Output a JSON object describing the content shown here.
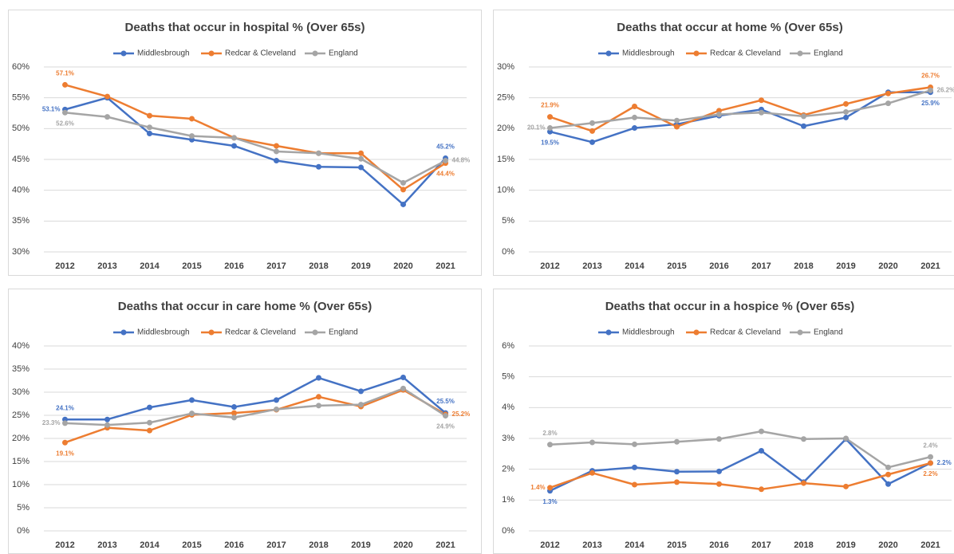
{
  "chart_data": [
    {
      "type": "line",
      "title": "Deaths that occur in hospital % (Over 65s)",
      "categories": [
        "2012",
        "2013",
        "2014",
        "2015",
        "2016",
        "2017",
        "2018",
        "2019",
        "2020",
        "2021"
      ],
      "series": [
        {
          "name": "Middlesbrough",
          "color": "#4472c4",
          "values": [
            53.1,
            55.0,
            49.2,
            48.2,
            47.2,
            44.8,
            43.8,
            43.7,
            37.7,
            45.2
          ],
          "value_labels": [
            "53.1%",
            null,
            null,
            null,
            null,
            null,
            null,
            null,
            null,
            "45.2%"
          ]
        },
        {
          "name": "Redcar & Cleveland",
          "color": "#ed7d31",
          "values": [
            57.1,
            55.2,
            52.1,
            51.6,
            48.5,
            47.2,
            46.0,
            46.0,
            40.1,
            44.4
          ],
          "value_labels": [
            "57.1%",
            null,
            null,
            null,
            null,
            null,
            null,
            null,
            null,
            "44.4%"
          ]
        },
        {
          "name": "England",
          "color": "#a5a5a5",
          "values": [
            52.6,
            51.9,
            50.2,
            48.8,
            48.5,
            46.3,
            46.0,
            45.1,
            41.2,
            44.8
          ],
          "value_labels": [
            "52.6%",
            null,
            null,
            null,
            null,
            null,
            null,
            null,
            null,
            "44.8%"
          ]
        }
      ],
      "ylim": [
        30,
        60
      ],
      "yticks": [
        {
          "value": 30,
          "label": "30%"
        },
        {
          "value": 35,
          "label": "35%"
        },
        {
          "value": 40,
          "label": "40%"
        },
        {
          "value": 45,
          "label": "45%"
        },
        {
          "value": 50,
          "label": "50%"
        },
        {
          "value": 55,
          "label": "55%"
        },
        {
          "value": 60,
          "label": "60%"
        }
      ],
      "grid": true,
      "legend": "top"
    },
    {
      "type": "line",
      "title": "Deaths that occur at home % (Over 65s)",
      "categories": [
        "2012",
        "2013",
        "2014",
        "2015",
        "2016",
        "2017",
        "2018",
        "2019",
        "2020",
        "2021"
      ],
      "series": [
        {
          "name": "Middlesbrough",
          "color": "#4472c4",
          "values": [
            19.5,
            17.8,
            20.1,
            20.7,
            22.1,
            23.1,
            20.4,
            21.8,
            25.9,
            25.9
          ],
          "value_labels": [
            "19.5%",
            null,
            null,
            null,
            null,
            null,
            null,
            null,
            null,
            "25.9%"
          ]
        },
        {
          "name": "Redcar & Cleveland",
          "color": "#ed7d31",
          "values": [
            21.9,
            19.6,
            23.6,
            20.3,
            22.9,
            24.6,
            22.2,
            24.0,
            25.7,
            26.7
          ],
          "value_labels": [
            "21.9%",
            null,
            null,
            null,
            null,
            null,
            null,
            null,
            null,
            "26.7%"
          ]
        },
        {
          "name": "England",
          "color": "#a5a5a5",
          "values": [
            20.1,
            20.9,
            21.8,
            21.3,
            22.3,
            22.6,
            22.0,
            22.7,
            24.1,
            26.2
          ],
          "value_labels": [
            "20.1%",
            null,
            null,
            null,
            null,
            null,
            null,
            null,
            null,
            "26.2%"
          ]
        }
      ],
      "ylim": [
        0,
        30
      ],
      "yticks": [
        {
          "value": 0,
          "label": "0%"
        },
        {
          "value": 5,
          "label": "5%"
        },
        {
          "value": 10,
          "label": "10%"
        },
        {
          "value": 15,
          "label": "15%"
        },
        {
          "value": 20,
          "label": "20%"
        },
        {
          "value": 25,
          "label": "25%"
        },
        {
          "value": 30,
          "label": "30%"
        }
      ],
      "grid": true,
      "legend": "top"
    },
    {
      "type": "line",
      "title": "Deaths that occur in care home % (Over 65s)",
      "categories": [
        "2012",
        "2013",
        "2014",
        "2015",
        "2016",
        "2017",
        "2018",
        "2019",
        "2020",
        "2021"
      ],
      "series": [
        {
          "name": "Middlesbrough",
          "color": "#4472c4",
          "values": [
            24.1,
            24.1,
            26.7,
            28.3,
            26.8,
            28.3,
            33.1,
            30.2,
            33.2,
            25.5
          ],
          "value_labels": [
            "24.1%",
            null,
            null,
            null,
            null,
            null,
            null,
            null,
            null,
            "25.5%"
          ]
        },
        {
          "name": "Redcar & Cleveland",
          "color": "#ed7d31",
          "values": [
            19.1,
            22.3,
            21.7,
            25.1,
            25.5,
            26.2,
            29.0,
            26.9,
            30.5,
            25.2
          ],
          "value_labels": [
            "19.1%",
            null,
            null,
            null,
            null,
            null,
            null,
            null,
            null,
            "25.2%"
          ]
        },
        {
          "name": "England",
          "color": "#a5a5a5",
          "values": [
            23.3,
            22.9,
            23.4,
            25.4,
            24.5,
            26.3,
            27.1,
            27.3,
            30.8,
            24.9
          ],
          "value_labels": [
            "23.3%",
            null,
            null,
            null,
            null,
            null,
            null,
            null,
            null,
            "24.9%"
          ]
        }
      ],
      "ylim": [
        0,
        40
      ],
      "yticks": [
        {
          "value": 0,
          "label": "0%"
        },
        {
          "value": 5,
          "label": "5%"
        },
        {
          "value": 10,
          "label": "10%"
        },
        {
          "value": 15,
          "label": "15%"
        },
        {
          "value": 20,
          "label": "20%"
        },
        {
          "value": 25,
          "label": "25%"
        },
        {
          "value": 30,
          "label": "30%"
        },
        {
          "value": 35,
          "label": "35%"
        },
        {
          "value": 40,
          "label": "40%"
        }
      ],
      "grid": true,
      "legend": "top"
    },
    {
      "type": "line",
      "title": "Deaths that occur in a hospice % (Over 65s)",
      "categories": [
        "2012",
        "2013",
        "2014",
        "2015",
        "2016",
        "2017",
        "2018",
        "2019",
        "2020",
        "2021"
      ],
      "series": [
        {
          "name": "Middlesbrough",
          "color": "#4472c4",
          "values": [
            1.3,
            1.95,
            2.06,
            1.92,
            1.93,
            2.6,
            1.58,
            2.98,
            1.52,
            2.2
          ],
          "value_labels": [
            "1.3%",
            null,
            null,
            null,
            null,
            null,
            null,
            null,
            null,
            "2.2%"
          ]
        },
        {
          "name": "Redcar & Cleveland",
          "color": "#ed7d31",
          "values": [
            1.4,
            1.88,
            1.5,
            1.58,
            1.52,
            1.35,
            1.55,
            1.44,
            1.83,
            2.2
          ],
          "value_labels": [
            "1.4%",
            null,
            null,
            null,
            null,
            null,
            null,
            null,
            null,
            "2.2%"
          ]
        },
        {
          "name": "England",
          "color": "#a5a5a5",
          "values": [
            2.8,
            2.87,
            2.81,
            2.89,
            2.98,
            3.23,
            2.98,
            3.0,
            2.06,
            2.4
          ],
          "value_labels": [
            "2.8%",
            null,
            null,
            null,
            null,
            null,
            null,
            null,
            null,
            "2.4%"
          ]
        }
      ],
      "ylim": [
        0,
        6
      ],
      "yticks": [
        {
          "value": 0,
          "label": "0%"
        },
        {
          "value": 1,
          "label": "1%"
        },
        {
          "value": 2,
          "label": "2%"
        },
        {
          "value": 3,
          "label": "3%"
        },
        {
          "value": 4,
          "label": "4%"
        },
        {
          "value": 5,
          "label": "5%"
        },
        {
          "value": 6,
          "label": "6%"
        }
      ],
      "grid": true,
      "legend": "top"
    }
  ]
}
